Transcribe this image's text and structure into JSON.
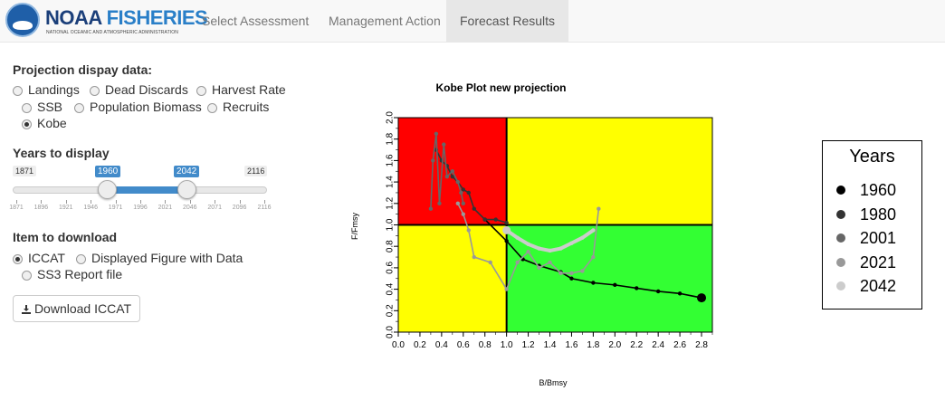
{
  "nav": {
    "logo_title_a": "NOAA",
    "logo_title_b": "FISHERIES",
    "logo_subtitle": "NATIONAL OCEANIC AND ATMOSPHERIC ADMINISTRATION",
    "tabs": [
      "Select Assessment",
      "Management Action",
      "Forecast Results"
    ],
    "active_tab": "Forecast Results"
  },
  "sidebar": {
    "projection_label": "Projection dispay data:",
    "projection_options": [
      "Landings",
      "Dead Discards",
      "Harvest Rate",
      "SSB",
      "Population Biomass",
      "Recruits",
      "Kobe"
    ],
    "projection_selected": "Kobe",
    "years_label": "Years to display",
    "slider": {
      "min": "1871",
      "max": "2116",
      "from": "1960",
      "to": "2042",
      "tick_labels": [
        "1871",
        "1896",
        "1921",
        "1946",
        "1971",
        "1996",
        "2021",
        "2046",
        "2071",
        "2096",
        "2116"
      ]
    },
    "download_label": "Item to download",
    "download_options": [
      "ICCAT",
      "Displayed Figure with Data",
      "SS3 Report file"
    ],
    "download_selected": "ICCAT",
    "download_button": "Download ICCAT"
  },
  "chart_data": {
    "type": "line",
    "title": "Kobe Plot new projection",
    "xlabel": "B/Bmsy",
    "ylabel": "F/Fmsy",
    "xlim": [
      0.0,
      2.9
    ],
    "ylim": [
      0.0,
      2.0
    ],
    "xticks": [
      "0.0",
      "0.2",
      "0.4",
      "0.6",
      "0.8",
      "1.0",
      "1.2",
      "1.4",
      "1.6",
      "1.8",
      "2.0",
      "2.2",
      "2.4",
      "2.6",
      "2.8"
    ],
    "yticks": [
      "0.0",
      "0.2",
      "0.4",
      "0.6",
      "0.8",
      "1.0",
      "1.2",
      "1.4",
      "1.6",
      "1.8",
      "2.0"
    ],
    "quadrant_colors": {
      "top_left": "#ff0000",
      "top_right": "#ffff00",
      "bottom_left": "#ffff00",
      "bottom_right": "#33ff33"
    },
    "legend_title": "Years",
    "series": [
      {
        "name": "1960",
        "color": "#000000",
        "x": [
          0.8,
          1.0,
          1.15,
          1.3,
          1.5,
          1.6,
          1.8,
          2.0,
          2.2,
          2.4,
          2.6,
          2.8
        ],
        "y": [
          1.05,
          0.85,
          0.68,
          0.62,
          0.56,
          0.5,
          0.46,
          0.44,
          0.41,
          0.38,
          0.36,
          0.32
        ]
      },
      {
        "name": "1980",
        "color": "#333333",
        "x": [
          0.35,
          0.4,
          0.45,
          0.5,
          0.55,
          0.6,
          0.65,
          0.7,
          0.8,
          0.9,
          1.0
        ],
        "y": [
          1.7,
          1.6,
          1.55,
          1.45,
          1.4,
          1.33,
          1.3,
          1.15,
          1.05,
          1.05,
          1.02
        ]
      },
      {
        "name": "2001",
        "color": "#666666",
        "x": [
          0.3,
          0.32,
          0.35,
          0.38,
          0.42,
          0.45,
          0.5,
          0.55,
          0.58,
          0.6
        ],
        "y": [
          1.15,
          1.6,
          1.85,
          1.2,
          1.75,
          1.45,
          1.5,
          1.4,
          1.3,
          1.2
        ]
      },
      {
        "name": "2021",
        "color": "#999999",
        "x": [
          0.55,
          0.6,
          0.65,
          0.7,
          0.85,
          1.0,
          1.1,
          1.2,
          1.3,
          1.4,
          1.5,
          1.6,
          1.7,
          1.8,
          1.85
        ],
        "y": [
          1.2,
          1.1,
          0.95,
          0.7,
          0.65,
          0.4,
          0.65,
          0.75,
          0.6,
          0.65,
          0.55,
          0.55,
          0.57,
          0.7,
          1.15
        ]
      },
      {
        "name": "2042",
        "color": "#cccccc",
        "x": [
          1.0,
          1.1,
          1.2,
          1.3,
          1.4,
          1.5,
          1.6,
          1.7,
          1.8
        ],
        "y": [
          0.95,
          0.88,
          0.82,
          0.78,
          0.76,
          0.78,
          0.83,
          0.88,
          0.95
        ]
      }
    ]
  }
}
